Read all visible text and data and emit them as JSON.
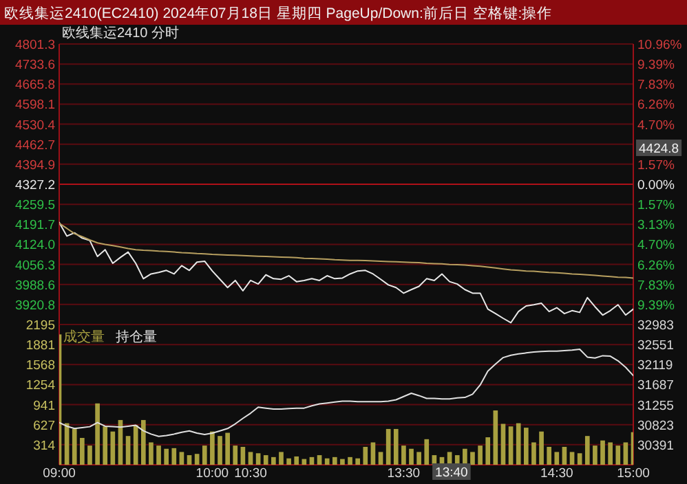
{
  "chart_data": [
    {
      "type": "line",
      "title": "欧线集运2410(EC2410) 2024年07月18日 星期四 PageUp/Down:前后日 空格键:操作",
      "subtitle": "欧线集运2410  分时",
      "categories": [
        null,
        null,
        null,
        null,
        null,
        null,
        null,
        null,
        null,
        null,
        null,
        null,
        null,
        null,
        null,
        null,
        null,
        null,
        null,
        null,
        null,
        null,
        null,
        null,
        null,
        null,
        null,
        null,
        null,
        null,
        null,
        null,
        null,
        null,
        null,
        null,
        null,
        null,
        null,
        null,
        null,
        null,
        null,
        null,
        null,
        null,
        null,
        null,
        null,
        null,
        null,
        null,
        null,
        null,
        null,
        null,
        null,
        null,
        null,
        null,
        null,
        null,
        null,
        null,
        null,
        null,
        null,
        null,
        null,
        null,
        null,
        null,
        null,
        null,
        null,
        null
      ],
      "ylim": [
        3853.1,
        4801.3
      ],
      "yticks": [
        4801.3,
        4733.6,
        4665.8,
        4598.1,
        4530.4,
        4462.7,
        4394.9,
        4327.2,
        4259.5,
        4191.7,
        {
          "value": 4124,
          "label": "4124.0"
        },
        4056.3,
        3988.6,
        3920.8
      ],
      "y2lim": [
        -10.96,
        10.96
      ],
      "y2ticks": [
        {
          "value": 10.96,
          "label": "10.96%"
        },
        {
          "value": 9.39,
          "label": "9.39%"
        },
        {
          "value": 7.83,
          "label": "7.83%"
        },
        {
          "value": 6.26,
          "label": "6.26%"
        },
        {
          "value": 4.7,
          "label": "4.70%"
        },
        {
          "value": 1.57,
          "label": "1.57%"
        },
        {
          "value": 0,
          "label": "0.00%"
        },
        {
          "value": -1.57,
          "label": "1.57%"
        },
        {
          "value": -3.13,
          "label": "3.13%"
        },
        {
          "value": -4.7,
          "label": "4.70%"
        },
        {
          "value": -6.26,
          "label": "6.26%"
        },
        {
          "value": -7.83,
          "label": "7.83%"
        },
        {
          "value": -9.39,
          "label": "9.39%"
        }
      ],
      "tick_labels": "y",
      "grid": "y",
      "ref_lines": [
        {
          "axis": "y",
          "value": 4327.2,
          "color": "#b01018"
        }
      ],
      "series": [
        {
          "color": "#e8e8e8",
          "values": [
            4198,
            4152,
            4163,
            4145,
            4137,
            4083,
            4106,
            4060,
            4080,
            4098,
            4060,
            4008,
            4024,
            4029,
            4036,
            4024,
            4052,
            4036,
            4064,
            4067,
            4034,
            4006,
            3978,
            4002,
            3967,
            4002,
            3990,
            4021,
            4008,
            4006,
            4018,
            3998,
            4002,
            4008,
            4002,
            4018,
            4008,
            4010,
            4024,
            4034,
            4036,
            4024,
            4006,
            3987,
            3978,
            3959,
            3971,
            3982,
            4008,
            4002,
            4024,
            3998,
            3990,
            3971,
            3959,
            3959,
            3905,
            3890,
            3874,
            3859,
            3897,
            3916,
            3920,
            3925,
            3897,
            3910,
            3890,
            3900,
            3894,
            3944,
            3913,
            3885,
            3900,
            3920,
            3885,
            3905
          ]
        },
        {
          "color": "#b8a060",
          "values": [
            4195,
            4178,
            4160,
            4150,
            4139,
            4129,
            4124,
            4120,
            4115,
            4110,
            4106,
            4104,
            4103,
            4101,
            4100,
            4098,
            4096,
            4095,
            4093,
            4092,
            4090,
            4089,
            4088,
            4087,
            4086,
            4085,
            4084,
            4083,
            4082,
            4081,
            4080,
            4079,
            4077,
            4076,
            4075,
            4074,
            4072,
            4071,
            4070,
            4070,
            4069,
            4068,
            4067,
            4066,
            4065,
            4064,
            4063,
            4062,
            4060,
            4059,
            4058,
            4056,
            4055,
            4054,
            4052,
            4050,
            4047,
            4044,
            4041,
            4038,
            4036,
            4034,
            4033,
            4031,
            4029,
            4028,
            4026,
            4024,
            4023,
            4021,
            4019,
            4017,
            4015,
            4013,
            4012,
            4010
          ]
        }
      ],
      "annotations": [
        "4424.8"
      ]
    },
    {
      "type": "bar",
      "categories": [
        "09:00",
        null,
        null,
        null,
        null,
        null,
        null,
        null,
        null,
        null,
        null,
        null,
        null,
        null,
        null,
        null,
        null,
        null,
        null,
        null,
        "10:00",
        null,
        null,
        null,
        null,
        "10:30",
        null,
        null,
        null,
        null,
        null,
        null,
        null,
        null,
        null,
        null,
        null,
        null,
        null,
        null,
        null,
        null,
        null,
        null,
        null,
        "13:30",
        null,
        null,
        null,
        null,
        null,
        null,
        null,
        null,
        null,
        null,
        null,
        null,
        null,
        null,
        null,
        null,
        null,
        null,
        null,
        "14:30",
        null,
        null,
        null,
        null,
        null,
        null,
        null,
        null,
        null,
        "15:00"
      ],
      "ylim": [
        0,
        2195
      ],
      "yticks": [
        314,
        627,
        941,
        1254,
        1568,
        1881,
        2195
      ],
      "y2lim": [
        29959,
        32983
      ],
      "y2ticks": [
        30391,
        30823,
        31255,
        31687,
        32119,
        32551,
        32983
      ],
      "grid": "y",
      "legend": "top left",
      "series": [
        {
          "name": "成交量",
          "type": "bar",
          "color": "#a8a040",
          "values": [
            2040,
            650,
            560,
            420,
            300,
            960,
            600,
            520,
            700,
            450,
            620,
            700,
            350,
            300,
            250,
            260,
            200,
            150,
            170,
            300,
            520,
            450,
            500,
            300,
            280,
            200,
            180,
            150,
            120,
            200,
            100,
            130,
            90,
            120,
            150,
            100,
            120,
            90,
            120,
            100,
            280,
            350,
            200,
            560,
            560,
            300,
            250,
            200,
            400,
            150,
            120,
            200,
            150,
            250,
            200,
            300,
            430,
            850,
            640,
            600,
            650,
            580,
            350,
            520,
            280,
            200,
            280,
            200,
            180,
            450,
            300,
            380,
            350,
            300,
            350,
            510
          ]
        },
        {
          "name": "持仓量",
          "type": "line",
          "axis": "y2",
          "color": "#e0e0e0",
          "values": [
            30870,
            30790,
            30740,
            30760,
            30780,
            30870,
            30790,
            30780,
            30770,
            30790,
            30810,
            30690,
            30620,
            30570,
            30590,
            30620,
            30660,
            30690,
            30640,
            30610,
            30640,
            30690,
            30740,
            30840,
            30960,
            31070,
            31200,
            31180,
            31160,
            31160,
            31170,
            31180,
            31180,
            31230,
            31270,
            31290,
            31310,
            31330,
            31330,
            31320,
            31320,
            31320,
            31320,
            31330,
            31360,
            31430,
            31500,
            31450,
            31390,
            31390,
            31380,
            31380,
            31400,
            31410,
            31480,
            31680,
            31980,
            32130,
            32270,
            32320,
            32350,
            32370,
            32390,
            32400,
            32410,
            32410,
            32420,
            32430,
            32450,
            32280,
            32260,
            32310,
            32300,
            32200,
            32060,
            31880
          ]
        }
      ],
      "annotations": [
        "13:40"
      ]
    }
  ]
}
